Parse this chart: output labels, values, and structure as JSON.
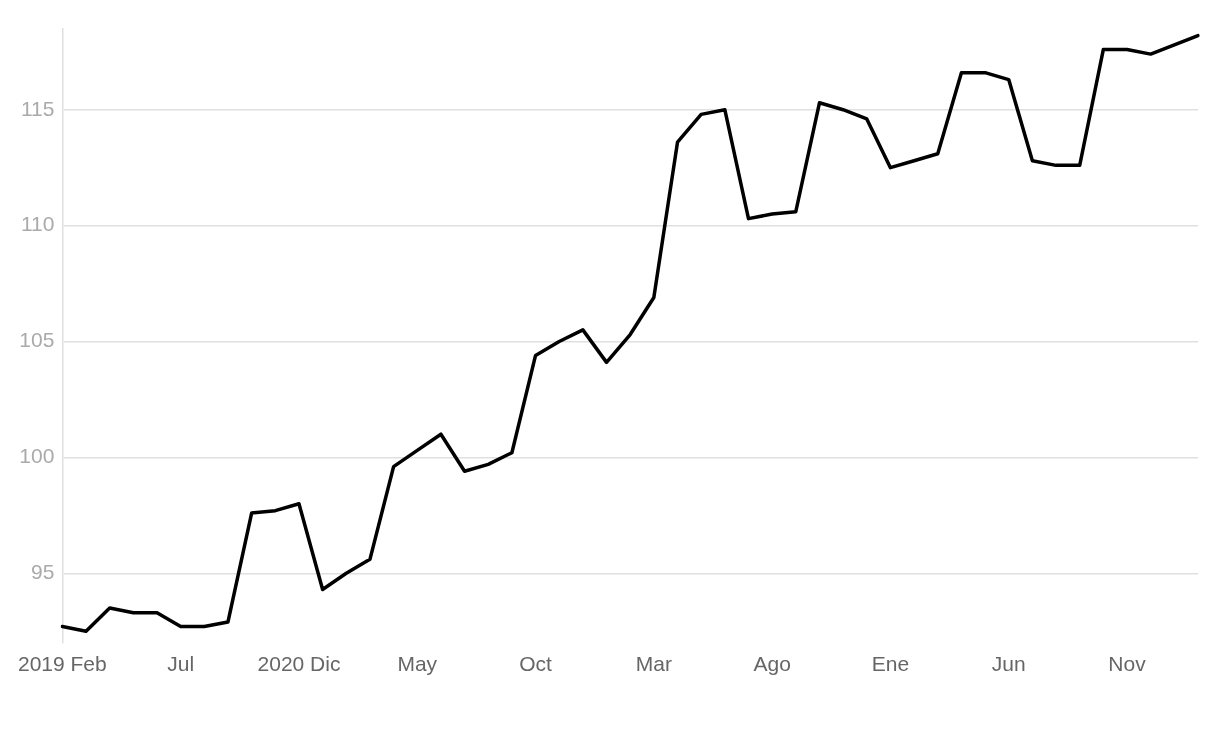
{
  "chart_data": {
    "type": "line",
    "categories": [
      "2019 Feb",
      null,
      null,
      null,
      null,
      "Jul",
      null,
      null,
      null,
      null,
      "2020 Dic",
      null,
      null,
      null,
      null,
      "May",
      null,
      null,
      null,
      null,
      "Oct",
      null,
      null,
      null,
      null,
      "Mar",
      null,
      null,
      null,
      null,
      "Ago",
      null,
      null,
      null,
      null,
      "Ene",
      null,
      null,
      null,
      null,
      "Jun",
      null,
      null,
      null,
      null,
      "Nov",
      null,
      null,
      null
    ],
    "series": [
      {
        "color": "#000000",
        "values": [
          92.7,
          92.5,
          93.5,
          93.3,
          93.3,
          92.7,
          92.7,
          92.9,
          97.6,
          97.7,
          98.0,
          94.3,
          95.0,
          95.6,
          99.6,
          100.3,
          101.0,
          99.4,
          99.7,
          100.2,
          104.4,
          105.0,
          105.5,
          104.1,
          105.3,
          106.9,
          113.6,
          114.8,
          115.0,
          110.3,
          110.5,
          110.6,
          115.3,
          115.0,
          114.6,
          112.5,
          112.8,
          113.1,
          116.6,
          116.6,
          116.3,
          112.8,
          112.6,
          112.6,
          117.6,
          117.6,
          117.4,
          117.8,
          118.2
        ]
      }
    ],
    "ylim": [
      92,
      118.5
    ],
    "yticks": [
      95,
      100,
      105,
      110,
      115
    ],
    "grid": "y",
    "legend": false,
    "marker": "none",
    "line_style": "solid"
  }
}
